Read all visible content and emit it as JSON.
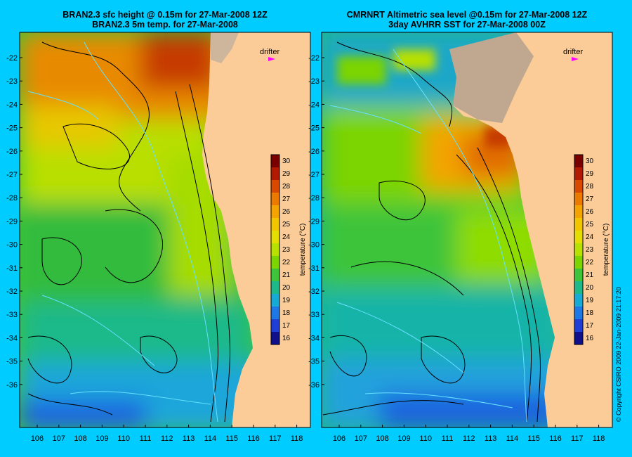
{
  "left_panel": {
    "title_line1": "BRAN2.3 sfc height @ 0.15m for 27-Mar-2008 12Z",
    "title_line2": "BRAN2.3 5m temp. for 27-Mar-2008",
    "drifter_label": "drifter"
  },
  "right_panel": {
    "title_line1": "CMRNRT Altimetric sea level  @0.15m  for 27-Mar-2008 12Z",
    "title_line2": "3day AVHRR SST for 27-Mar-2008 00Z",
    "drifter_label": "drifter"
  },
  "lat_ticks": [
    "-22",
    "-23",
    "-24",
    "-25",
    "-26",
    "-27",
    "-28",
    "-29",
    "-30",
    "-31",
    "-32",
    "-33",
    "-34",
    "-35",
    "-36"
  ],
  "lon_ticks": [
    "106",
    "107",
    "108",
    "109",
    "110",
    "111",
    "112",
    "113",
    "114",
    "115",
    "116",
    "117",
    "118"
  ],
  "colorbar": {
    "label": "temperature (°C)",
    "ticks": [
      "30",
      "29",
      "28",
      "27",
      "26",
      "25",
      "24",
      "23",
      "22",
      "21",
      "20",
      "19",
      "18",
      "17",
      "16"
    ],
    "colors": [
      "#7a0000",
      "#b11a00",
      "#d84a00",
      "#ec7a00",
      "#f3a400",
      "#f1c500",
      "#e3dd00",
      "#b8e000",
      "#7cd400",
      "#3ec43a",
      "#1eb98a",
      "#16aad4",
      "#1e79e6",
      "#1f3fd6",
      "#10108c"
    ]
  },
  "credit": "© Copyright CSIRO 2009   22-Jan-2009 21:17:20",
  "land_color": "#fccc98",
  "drifter_color": "#ff00ff"
}
